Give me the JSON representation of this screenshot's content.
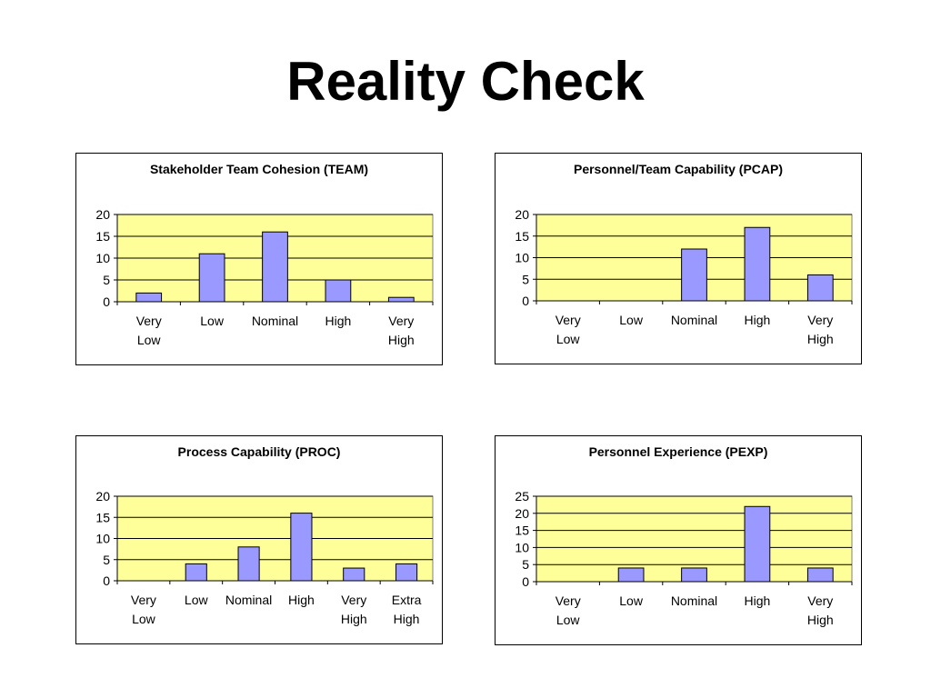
{
  "slide": {
    "title": "Reality Check"
  },
  "colors": {
    "plot_bg": "#ffff99",
    "bar_fill": "#9999ff",
    "bar_stroke": "#000000",
    "grid": "#000000"
  },
  "chart_data": [
    {
      "type": "bar",
      "title": "Stakeholder Team Cohesion (TEAM)",
      "categories": [
        [
          "Very",
          "Low"
        ],
        [
          "Low"
        ],
        [
          "Nominal"
        ],
        [
          "High"
        ],
        [
          "Very",
          "High"
        ]
      ],
      "values": [
        2,
        11,
        16,
        5,
        1
      ],
      "ylim": [
        0,
        20
      ],
      "yticks": [
        0,
        5,
        10,
        15,
        20
      ],
      "grid": true,
      "legend": "none"
    },
    {
      "type": "bar",
      "title": "Personnel/Team Capability (PCAP)",
      "categories": [
        [
          "Very",
          "Low"
        ],
        [
          "Low"
        ],
        [
          "Nominal"
        ],
        [
          "High"
        ],
        [
          "Very",
          "High"
        ]
      ],
      "values": [
        0,
        0,
        12,
        17,
        6
      ],
      "ylim": [
        0,
        20
      ],
      "yticks": [
        0,
        5,
        10,
        15,
        20
      ],
      "grid": true,
      "legend": "none"
    },
    {
      "type": "bar",
      "title": "Process Capability (PROC)",
      "categories": [
        [
          "Very",
          "Low"
        ],
        [
          "Low"
        ],
        [
          "Nominal"
        ],
        [
          "High"
        ],
        [
          "Very",
          "High"
        ],
        [
          "Extra",
          "High"
        ]
      ],
      "values": [
        0,
        4,
        8,
        16,
        3,
        4
      ],
      "ylim": [
        0,
        20
      ],
      "yticks": [
        0,
        5,
        10,
        15,
        20
      ],
      "grid": true,
      "legend": "none"
    },
    {
      "type": "bar",
      "title": "Personnel Experience (PEXP)",
      "categories": [
        [
          "Very",
          "Low"
        ],
        [
          "Low"
        ],
        [
          "Nominal"
        ],
        [
          "High"
        ],
        [
          "Very",
          "High"
        ]
      ],
      "values": [
        0,
        4,
        4,
        22,
        4
      ],
      "ylim": [
        0,
        25
      ],
      "yticks": [
        0,
        5,
        10,
        15,
        20,
        25
      ],
      "grid": true,
      "legend": "none"
    }
  ]
}
